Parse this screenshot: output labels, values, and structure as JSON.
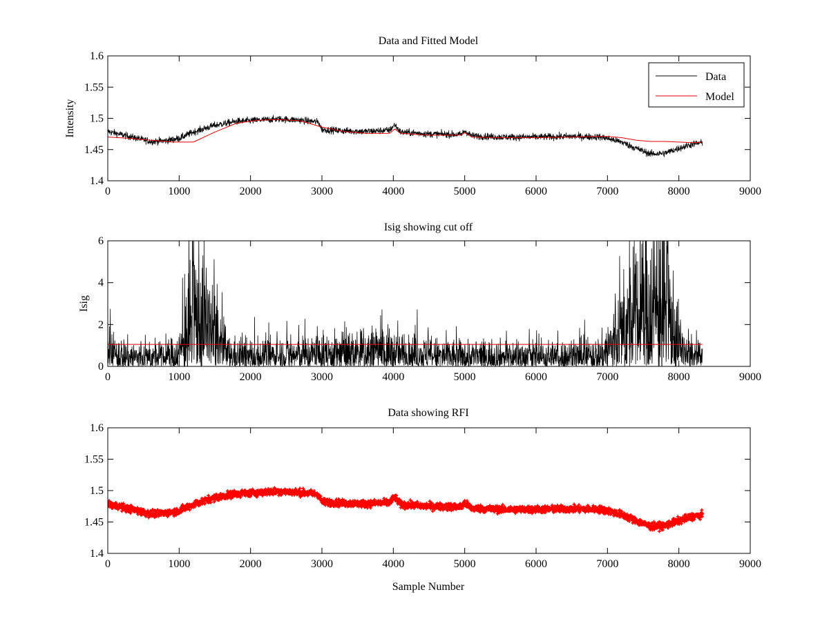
{
  "chart_data": [
    {
      "type": "line",
      "title": "Data and Fitted Model",
      "xlabel": "",
      "ylabel": "Intensity",
      "xlim": [
        0,
        9000
      ],
      "ylim": [
        1.4,
        1.6
      ],
      "xticks": [
        0,
        1000,
        2000,
        3000,
        4000,
        5000,
        6000,
        7000,
        8000,
        9000
      ],
      "xtick_labels": [
        "0",
        "1000",
        "2000",
        "3000",
        "4000",
        "5000",
        "6000",
        "7000",
        "8000",
        "9000"
      ],
      "yticks": [
        1.4,
        1.45,
        1.5,
        1.55,
        1.6
      ],
      "ytick_labels": [
        "1.4",
        "1.45",
        "1.5",
        "1.55",
        "1.6"
      ],
      "grid": false,
      "legend": {
        "position": "top-right",
        "entries": [
          "Data",
          "Model"
        ]
      },
      "series": [
        {
          "name": "Data",
          "color": "#000000",
          "style": "noisy-line",
          "noise_amplitude": 0.004,
          "x": [
            0,
            300,
            600,
            800,
            1000,
            1200,
            1500,
            1800,
            2100,
            2400,
            2700,
            2950,
            3000,
            3300,
            3600,
            3950,
            4020,
            4100,
            4500,
            4950,
            5000,
            5100,
            5500,
            6000,
            6500,
            6900,
            7000,
            7200,
            7400,
            7600,
            7800,
            8000,
            8200,
            8330
          ],
          "y": [
            1.479,
            1.471,
            1.463,
            1.464,
            1.468,
            1.478,
            1.489,
            1.495,
            1.497,
            1.499,
            1.497,
            1.494,
            1.482,
            1.48,
            1.479,
            1.481,
            1.49,
            1.478,
            1.475,
            1.474,
            1.48,
            1.472,
            1.47,
            1.47,
            1.471,
            1.47,
            1.468,
            1.462,
            1.452,
            1.443,
            1.444,
            1.452,
            1.459,
            1.461
          ]
        },
        {
          "name": "Model",
          "color": "#e00000",
          "style": "line",
          "x": [
            0,
            300,
            600,
            900,
            1200,
            1500,
            1800,
            2100,
            2400,
            2700,
            3000,
            3300,
            3600,
            3950,
            4020,
            4100,
            4500,
            4950,
            5000,
            5100,
            5500,
            6000,
            6500,
            6900,
            7000,
            7200,
            7400,
            7600,
            7800,
            8000,
            8200,
            8330
          ],
          "y": [
            1.47,
            1.468,
            1.465,
            1.462,
            1.462,
            1.478,
            1.492,
            1.497,
            1.498,
            1.496,
            1.486,
            1.479,
            1.476,
            1.476,
            1.483,
            1.476,
            1.473,
            1.473,
            1.477,
            1.47,
            1.469,
            1.469,
            1.47,
            1.471,
            1.471,
            1.469,
            1.465,
            1.463,
            1.463,
            1.462,
            1.461,
            1.462
          ]
        }
      ]
    },
    {
      "type": "line",
      "title": "Isig showing cut off",
      "xlabel": "",
      "ylabel": "Isig",
      "xlim": [
        0,
        9000
      ],
      "ylim": [
        0,
        6
      ],
      "xticks": [
        0,
        1000,
        2000,
        3000,
        4000,
        5000,
        6000,
        7000,
        8000,
        9000
      ],
      "xtick_labels": [
        "0",
        "1000",
        "2000",
        "3000",
        "4000",
        "5000",
        "6000",
        "7000",
        "8000",
        "9000"
      ],
      "yticks": [
        0,
        2,
        4,
        6
      ],
      "ytick_labels": [
        "0",
        "2",
        "4",
        "6"
      ],
      "grid": false,
      "series": [
        {
          "name": "Isig",
          "color": "#000000",
          "style": "noisy-positive",
          "x": [
            0,
            200,
            500,
            800,
            1000,
            1100,
            1250,
            1400,
            1550,
            1700,
            2000,
            2500,
            3000,
            3500,
            3800,
            4000,
            4500,
            5000,
            5500,
            6000,
            6500,
            6900,
            7000,
            7200,
            7400,
            7600,
            7800,
            7900,
            8000,
            8100,
            8330
          ],
          "y": [
            0.6,
            0.5,
            0.4,
            0.4,
            0.6,
            1.4,
            2.3,
            1.8,
            1.1,
            0.5,
            0.45,
            0.5,
            0.55,
            0.6,
            0.75,
            0.6,
            0.5,
            0.45,
            0.45,
            0.45,
            0.45,
            0.5,
            0.8,
            1.5,
            2.1,
            2.7,
            2.5,
            1.8,
            1.0,
            0.5,
            0.4
          ]
        },
        {
          "name": "cut off",
          "color": "#e00000",
          "style": "line",
          "x": [
            0,
            8330
          ],
          "y": [
            1.05,
            1.05
          ]
        }
      ]
    },
    {
      "type": "scatter",
      "title": "Data showing RFI",
      "xlabel": "Sample Number",
      "ylabel": "",
      "xlim": [
        0,
        9000
      ],
      "ylim": [
        1.4,
        1.6
      ],
      "xticks": [
        0,
        1000,
        2000,
        3000,
        4000,
        5000,
        6000,
        7000,
        8000,
        9000
      ],
      "xtick_labels": [
        "0",
        "1000",
        "2000",
        "3000",
        "4000",
        "5000",
        "6000",
        "7000",
        "8000",
        "9000"
      ],
      "yticks": [
        1.4,
        1.45,
        1.5,
        1.55,
        1.6
      ],
      "ytick_labels": [
        "1.4",
        "1.45",
        "1.5",
        "1.55",
        "1.6"
      ],
      "grid": false,
      "series": [
        {
          "name": "RFI",
          "color": "#ff0000",
          "style": "dense-markers",
          "noise_amplitude": 0.004,
          "x": [
            0,
            300,
            600,
            800,
            1000,
            1200,
            1500,
            1800,
            2100,
            2400,
            2700,
            2950,
            3000,
            3300,
            3600,
            3950,
            4020,
            4100,
            4500,
            4950,
            5000,
            5100,
            5500,
            6000,
            6500,
            6900,
            7000,
            7200,
            7400,
            7600,
            7800,
            8000,
            8200,
            8330
          ],
          "y": [
            1.479,
            1.471,
            1.463,
            1.464,
            1.468,
            1.478,
            1.489,
            1.495,
            1.497,
            1.499,
            1.497,
            1.494,
            1.482,
            1.48,
            1.479,
            1.481,
            1.49,
            1.478,
            1.475,
            1.474,
            1.48,
            1.472,
            1.47,
            1.47,
            1.471,
            1.47,
            1.468,
            1.462,
            1.452,
            1.443,
            1.444,
            1.452,
            1.459,
            1.461
          ]
        }
      ]
    }
  ]
}
